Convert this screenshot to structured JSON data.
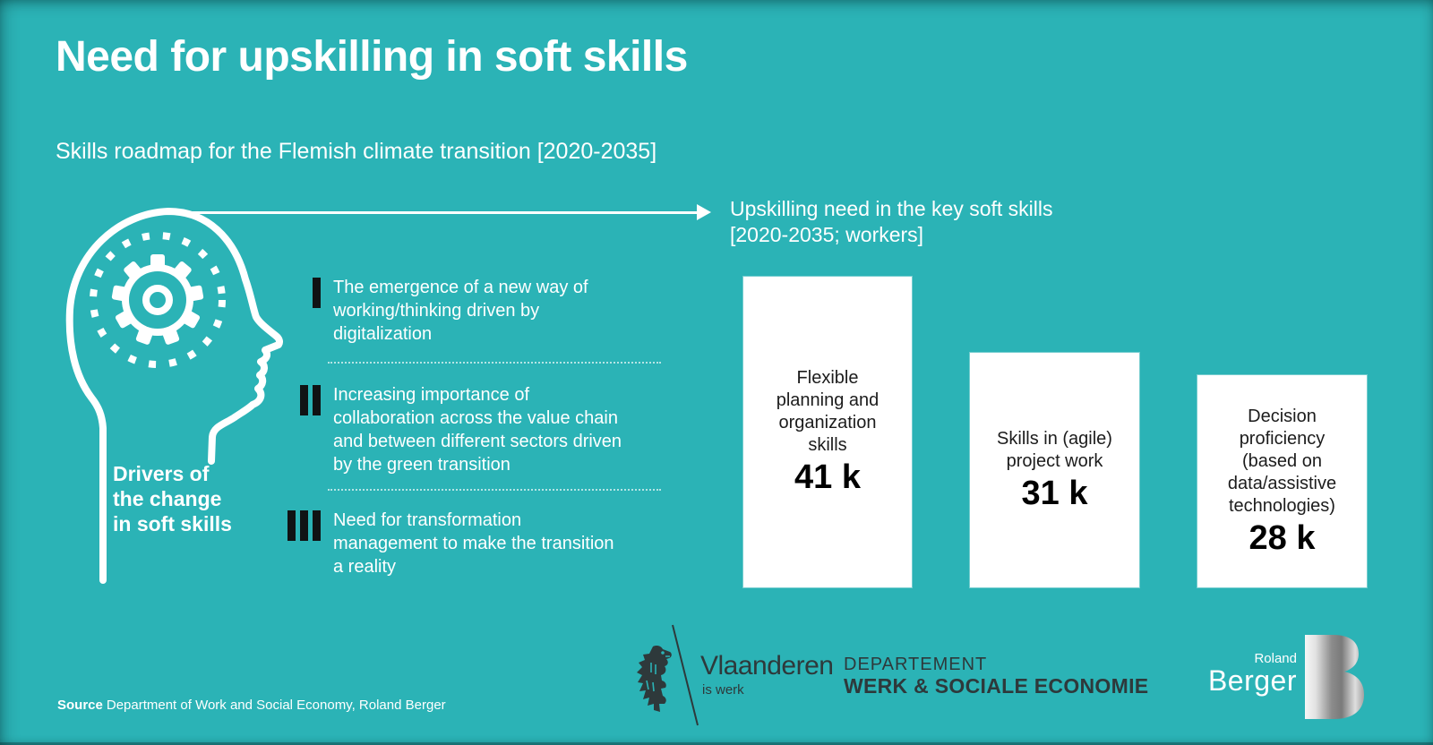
{
  "slide": {
    "title": "Need for upskilling in soft skills",
    "subtitle": "Skills roadmap for the Flemish climate transition [2020-2035]",
    "background_color": "#2BB3B6",
    "text_color_light": "#FFFFFF",
    "text_color_dark": "#111111"
  },
  "drivers": {
    "label": "Drivers of\nthe change\nin soft skills",
    "items": [
      {
        "numeral": "I",
        "text": "The emergence of a new way of\nworking/thinking driven by\ndigitalization"
      },
      {
        "numeral": "II",
        "text": "Increasing importance of\ncollaboration across the value chain\nand between different sectors driven\nby the green transition"
      },
      {
        "numeral": "III",
        "text": "Need for transformation\nmanagement to make the transition\na reality"
      }
    ]
  },
  "chart_heading": "Upskilling need in the key soft skills\n[2020-2035; workers]",
  "chart_data": {
    "type": "bar",
    "title": "Upskilling need in the key soft skills [2020-2035; workers]",
    "categories": [
      "Flexible planning and organization skills",
      "Skills in (agile) project work",
      "Decision proficiency (based on data/assistive technologies)"
    ],
    "display_labels": [
      "Flexible\nplanning and\norganization\nskills",
      "Skills in (agile)\nproject work",
      "Decision\nproficiency\n(based on\ndata/assistive\ntechnologies)"
    ],
    "values": [
      41000,
      31000,
      28000
    ],
    "value_labels": [
      "41 k",
      "31 k",
      "28 k"
    ],
    "unit": "workers",
    "bar_color": "#FFFFFF",
    "label_position": "inside-center",
    "grid": false,
    "legend": false,
    "axes_shown": false
  },
  "footer": {
    "source_label": "Source",
    "source_text": "Department of Work and Social Economy, Roland Berger",
    "vlaanderen": {
      "name": "Vlaanderen",
      "tagline": "is werk"
    },
    "departement": {
      "line1": "DEPARTEMENT",
      "line2": "WERK & SOCIALE ECONOMIE"
    },
    "roland_berger": {
      "line1": "Roland",
      "line2": "Berger",
      "b_logo_colors": [
        "#f5f5f5",
        "#8c8c8c",
        "#d9d9d9"
      ]
    }
  },
  "icons": {
    "head": "head-profile-gear-icon",
    "arrow": "arrow-right-icon",
    "lion": "vlaanderen-lion-icon",
    "b_logo": "roland-berger-b-icon"
  }
}
